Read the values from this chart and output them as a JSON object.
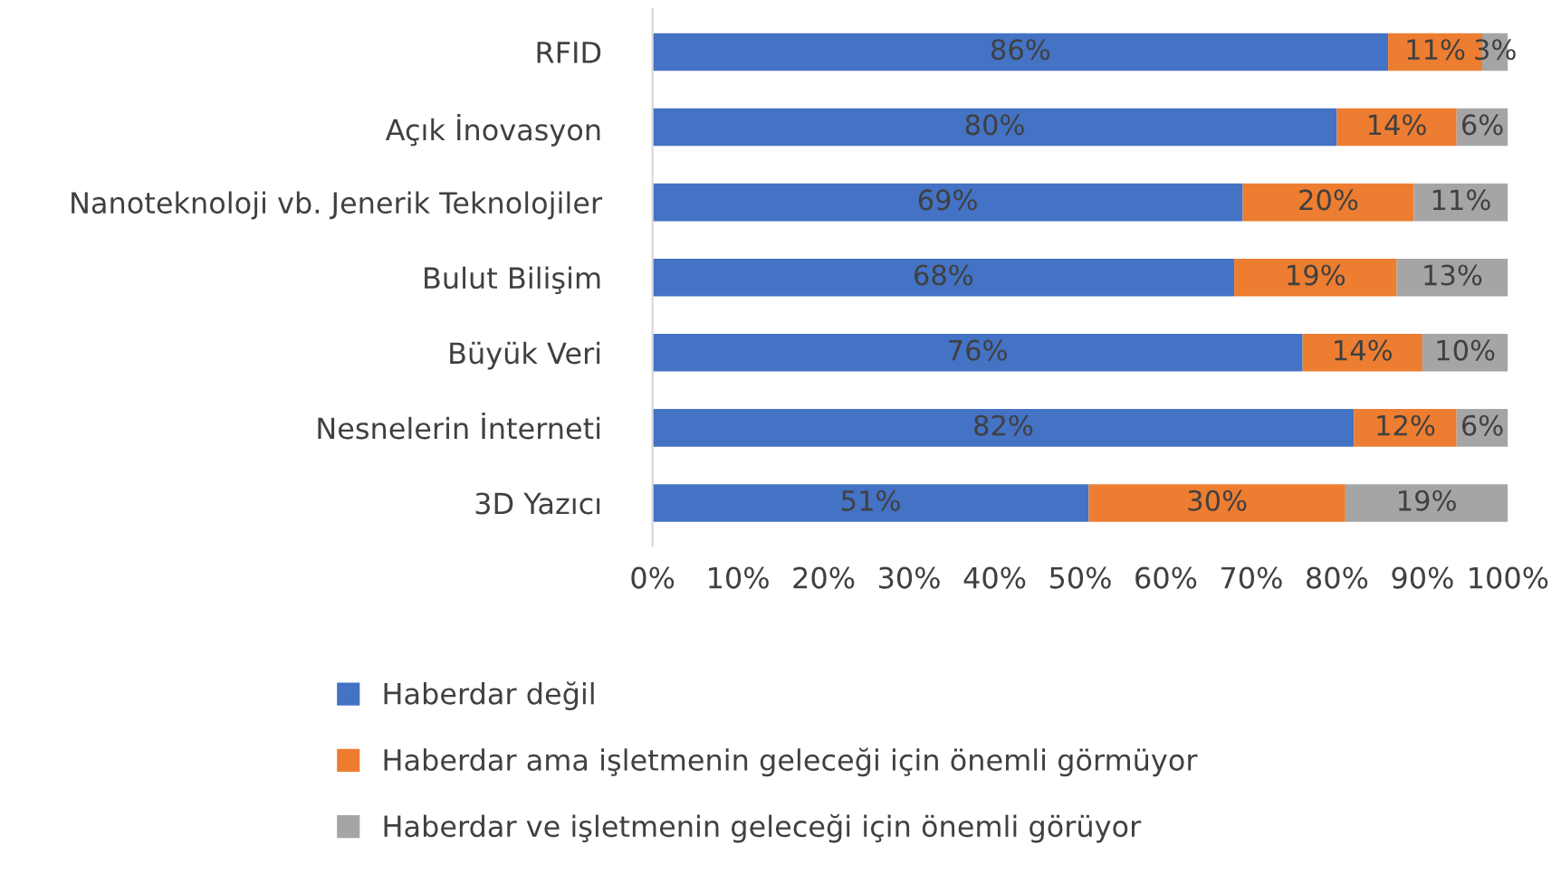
{
  "chart_data": {
    "type": "bar",
    "orientation": "horizontal",
    "stacked": true,
    "categories": [
      "RFID",
      "Açık İnovasyon",
      "Nanoteknoloji vb. Jenerik Teknolojiler",
      "Bulut Bilişim",
      "Büyük Veri",
      "Nesnelerin İnterneti",
      "3D Yazıcı"
    ],
    "series": [
      {
        "name": "Haberdar değil",
        "color": "#4472c4",
        "values": [
          86,
          80,
          69,
          68,
          76,
          82,
          51
        ],
        "value_labels": [
          "86%",
          "80%",
          "69%",
          "68%",
          "76%",
          "82%",
          "51%"
        ]
      },
      {
        "name": "Haberdar ama işletmenin geleceği için önemli görmüyor",
        "color": "#ed7d31",
        "values": [
          11,
          14,
          20,
          19,
          14,
          12,
          30
        ],
        "value_labels": [
          "11%",
          "14%",
          "20%",
          "19%",
          "14%",
          "12%",
          "30%"
        ]
      },
      {
        "name": "Haberdar ve işletmenin geleceği için önemli görüyor",
        "color": "#a5a5a5",
        "values": [
          3,
          6,
          11,
          13,
          10,
          6,
          19
        ],
        "value_labels": [
          "3%",
          "6%",
          "11%",
          "13%",
          "10%",
          "6%",
          "19%"
        ]
      }
    ],
    "xlim": [
      0,
      100
    ],
    "xticks": [
      {
        "value": 0,
        "label": "0%"
      },
      {
        "value": 10,
        "label": "10%"
      },
      {
        "value": 20,
        "label": "20%"
      },
      {
        "value": 30,
        "label": "30%"
      },
      {
        "value": 40,
        "label": "40%"
      },
      {
        "value": 50,
        "label": "50%"
      },
      {
        "value": 60,
        "label": "60%"
      },
      {
        "value": 70,
        "label": "70%"
      },
      {
        "value": 80,
        "label": "80%"
      },
      {
        "value": 90,
        "label": "90%"
      },
      {
        "value": 100,
        "label": "100%"
      }
    ],
    "grid": false,
    "legend": "bottom"
  }
}
